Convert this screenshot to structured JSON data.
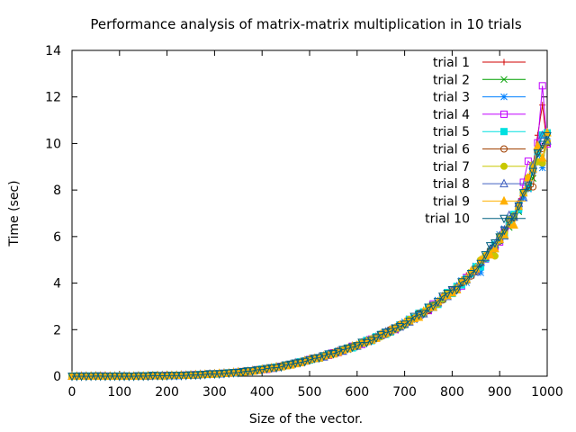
{
  "chart_data": {
    "type": "line",
    "title": "Performance analysis of matrix-matrix multiplication in 10 trials",
    "xlabel": "Size of the vector.",
    "ylabel": "Time (sec)",
    "xlim": [
      0,
      1000
    ],
    "ylim": [
      0,
      14
    ],
    "xticks": [
      "0",
      "100",
      "200",
      "300",
      "400",
      "500",
      "600",
      "700",
      "800",
      "900",
      "1000"
    ],
    "yticks": [
      "0",
      "2",
      "4",
      "6",
      "8",
      "10",
      "12",
      "14"
    ],
    "grid": false,
    "legend_position": "top-right",
    "x": [
      0,
      10,
      20,
      30,
      40,
      50,
      60,
      70,
      80,
      90,
      100,
      110,
      120,
      130,
      140,
      150,
      160,
      170,
      180,
      190,
      200,
      210,
      220,
      230,
      240,
      250,
      260,
      270,
      280,
      290,
      300,
      310,
      320,
      330,
      340,
      350,
      360,
      370,
      380,
      390,
      400,
      410,
      420,
      430,
      440,
      450,
      460,
      470,
      480,
      490,
      500,
      510,
      520,
      530,
      540,
      550,
      560,
      570,
      580,
      590,
      600,
      610,
      620,
      630,
      640,
      650,
      660,
      670,
      680,
      690,
      700,
      710,
      720,
      730,
      740,
      750,
      760,
      770,
      780,
      790,
      800,
      810,
      820,
      830,
      840,
      850,
      860,
      870,
      880,
      890,
      900,
      910,
      920,
      930,
      940,
      950,
      960,
      970,
      980,
      990,
      1000
    ],
    "base_values": [
      0,
      0,
      0,
      0,
      0,
      0,
      0,
      0,
      0,
      0,
      0,
      0,
      0,
      0,
      0.01,
      0.01,
      0.01,
      0.02,
      0.02,
      0.02,
      0.03,
      0.03,
      0.04,
      0.04,
      0.05,
      0.05,
      0.06,
      0.07,
      0.08,
      0.09,
      0.1,
      0.11,
      0.12,
      0.13,
      0.15,
      0.17,
      0.19,
      0.21,
      0.23,
      0.26,
      0.29,
      0.31,
      0.35,
      0.38,
      0.42,
      0.46,
      0.5,
      0.55,
      0.6,
      0.65,
      0.7,
      0.75,
      0.8,
      0.86,
      0.92,
      0.98,
      1.05,
      1.11,
      1.18,
      1.26,
      1.33,
      1.41,
      1.49,
      1.57,
      1.66,
      1.75,
      1.85,
      1.95,
      2.05,
      2.15,
      2.26,
      2.38,
      2.5,
      2.62,
      2.75,
      2.89,
      3.03,
      3.17,
      3.33,
      3.5,
      3.65,
      3.82,
      4.0,
      4.2,
      4.4,
      4.62,
      4.85,
      5.1,
      5.35,
      5.6,
      5.9,
      6.2,
      6.55,
      6.9,
      7.3,
      7.8,
      8.3,
      8.9,
      9.6,
      10.0,
      10.2
    ],
    "series": [
      {
        "name": "trial 1",
        "color": "#d00000",
        "marker": "plus",
        "offsets": {
          "96": 0.2,
          "97": 0.4,
          "98": 0.8,
          "99": 1.8,
          "100": 0.0
        }
      },
      {
        "name": "trial 2",
        "color": "#00a000",
        "marker": "cross",
        "offsets": {
          "94": -0.4,
          "97": -0.6,
          "99": 0.1
        }
      },
      {
        "name": "trial 3",
        "color": "#0080ff",
        "marker": "star",
        "offsets": {
          "83": -0.3,
          "86": -0.3,
          "98": -0.2,
          "99": -1.0
        }
      },
      {
        "name": "trial 4",
        "color": "#c000ff",
        "marker": "square",
        "offsets": {
          "95": 0.4,
          "96": 0.9,
          "98": 0.5,
          "99": 2.6,
          "100": 0.1
        }
      },
      {
        "name": "trial 5",
        "color": "#00e0e0",
        "marker": "filled-square",
        "offsets": {
          "99": 0.6,
          "100": 0.4
        }
      },
      {
        "name": "trial 6",
        "color": "#a04000",
        "marker": "circle",
        "offsets": {
          "97": -0.5,
          "99": 0.0
        }
      },
      {
        "name": "trial 7",
        "color": "#c8c800",
        "marker": "filled-circle",
        "offsets": {
          "89": -0.3,
          "98": -0.4,
          "99": -0.8
        }
      },
      {
        "name": "trial 8",
        "color": "#4060c0",
        "marker": "triangle",
        "offsets": {
          "92": 0.3,
          "97": 0.2,
          "99": 0.3
        }
      },
      {
        "name": "trial 9",
        "color": "#ffb000",
        "marker": "filled-triangle",
        "offsets": {
          "93": -0.2,
          "98": 0.3,
          "99": -0.9
        }
      },
      {
        "name": "trial 10",
        "color": "#006080",
        "marker": "inv-triangle",
        "offsets": {
          "88": 0.2,
          "92": 0.2,
          "98": -0.1,
          "99": 0.0
        }
      }
    ]
  }
}
